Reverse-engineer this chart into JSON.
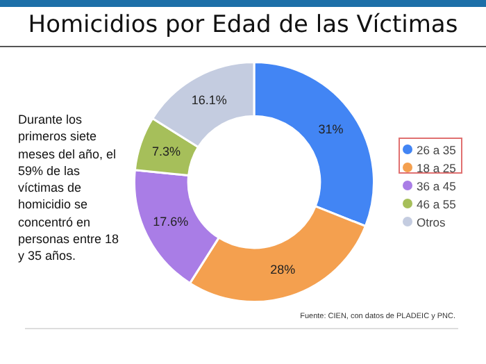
{
  "chart_data": {
    "type": "donut",
    "title": "Homicidios por Edad de las Víctimas",
    "categories": [
      "26 a 35",
      "18 a 25",
      "36 a 45",
      "46 a 55",
      "Otros"
    ],
    "values": [
      31,
      28,
      17.6,
      7.3,
      16.1
    ],
    "colors": [
      "#4285f4",
      "#f4a04f",
      "#a97de6",
      "#a6bf5a",
      "#c4cce0"
    ],
    "value_labels": [
      "31%",
      "28%",
      "17.6%",
      "7.3%",
      "16.1%"
    ],
    "legend": "right",
    "annotations": [
      "Durante los primeros siete meses del año, el 59% de las víctimas de homicidio se concentró en personas entre 18 y 35 años.",
      "Fuente: CIEN, con datos de PLADEIC y PNC."
    ]
  }
}
